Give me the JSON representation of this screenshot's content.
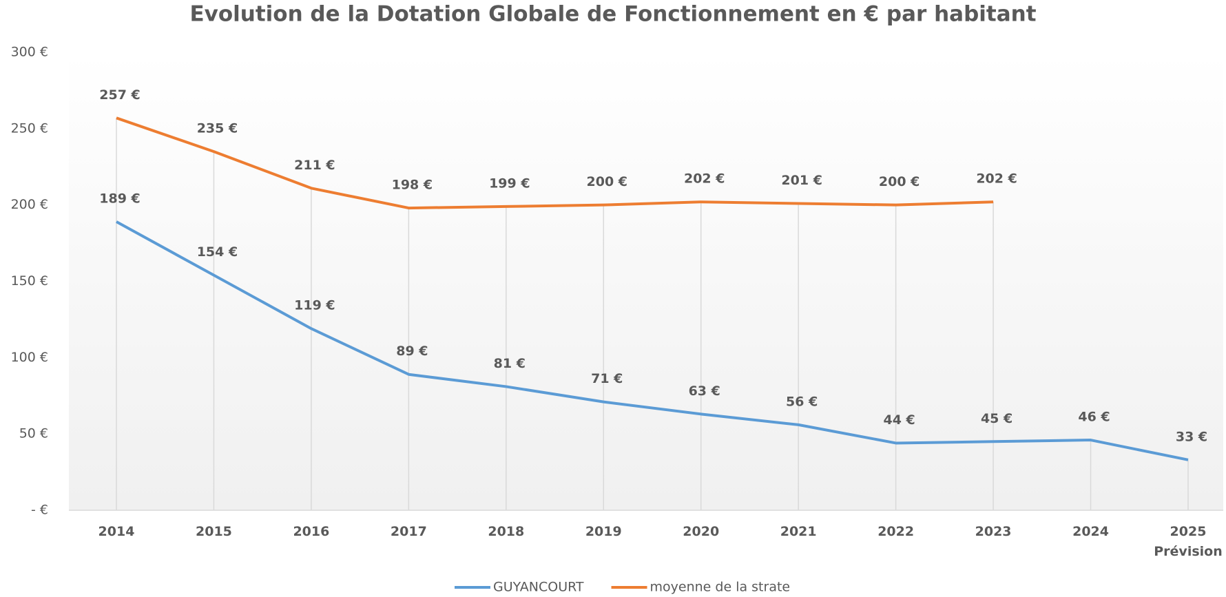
{
  "chart_data": {
    "type": "line",
    "title": "Evolution de la Dotation Globale de Fonctionnement en € par habitant",
    "categories": [
      "2014",
      "2015",
      "2016",
      "2017",
      "2018",
      "2019",
      "2020",
      "2021",
      "2022",
      "2023",
      "2024",
      "2025\nPrévision"
    ],
    "series": [
      {
        "name": "GUYANCOURT",
        "color": "#5b9bd5",
        "values": [
          189,
          154,
          119,
          89,
          81,
          71,
          63,
          56,
          44,
          45,
          46,
          33
        ],
        "value_labels": [
          "189 €",
          "154 €",
          "119 €",
          "89 €",
          "81 €",
          "71 €",
          "63 €",
          "56 €",
          "44 €",
          "45 €",
          "46 €",
          "33 €"
        ]
      },
      {
        "name": "moyenne de la strate",
        "color": "#ed7d31",
        "values": [
          257,
          235,
          211,
          198,
          199,
          200,
          202,
          201,
          200,
          202,
          null,
          null
        ],
        "value_labels": [
          "257 €",
          "235 €",
          "211 €",
          "198 €",
          "199 €",
          "200 €",
          "202 €",
          "201 €",
          "200 €",
          "202 €",
          null,
          null
        ]
      }
    ],
    "ylim": [
      0,
      300
    ],
    "yticks": [
      {
        "value": 0,
        "label": "-   €"
      },
      {
        "value": 50,
        "label": "50 €"
      },
      {
        "value": 100,
        "label": "100 €"
      },
      {
        "value": 150,
        "label": "150 €"
      },
      {
        "value": 200,
        "label": "200 €"
      },
      {
        "value": 250,
        "label": "250 €"
      },
      {
        "value": 300,
        "label": "300 €"
      }
    ],
    "legend": "bottom"
  }
}
